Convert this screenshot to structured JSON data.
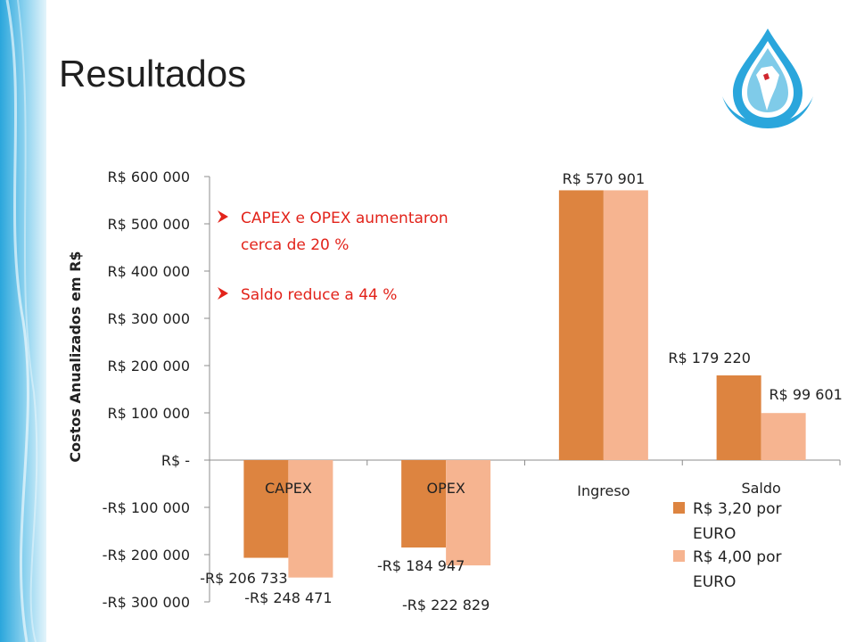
{
  "slide": {
    "title": "Resultados",
    "notes": [
      "CAPEX e OPEX aumentaron cerca de 20 %",
      "Saldo reduce a 44 %"
    ],
    "note_color": "#e2231a",
    "theme_colors": {
      "band_light": "#dff3fb",
      "band_dark": "#2aa6dc",
      "logo_blue": "#2aa6dc"
    }
  },
  "chart_data": {
    "type": "bar",
    "title": "",
    "ylabel": "Costos Anualizados em R$",
    "xlabel": "",
    "ylim": [
      -300000,
      600000
    ],
    "yticks": [
      600000,
      500000,
      400000,
      300000,
      200000,
      100000,
      0,
      -100000,
      -200000,
      -300000
    ],
    "ytick_labels": [
      "R$ 600 000",
      "R$ 500 000",
      "R$ 400 000",
      "R$ 300 000",
      "R$ 200 000",
      "R$ 100 000",
      "R$ -",
      "-R$ 100 000",
      "-R$ 200 000",
      "-R$ 300 000"
    ],
    "categories": [
      "CAPEX",
      "OPEX",
      "Ingreso",
      "Saldo"
    ],
    "series": [
      {
        "name": "R$ 3,20 por EURO",
        "color": "#dd8440",
        "values": [
          -206733,
          -184947,
          570901,
          179220
        ],
        "labels": [
          "-R$ 206 733",
          "-R$ 184 947",
          "R$ 570 901",
          "R$ 179 220"
        ]
      },
      {
        "name": "R$ 4,00 por EURO",
        "color": "#f6b490",
        "values": [
          -248471,
          -222829,
          570901,
          99601
        ],
        "labels": [
          "-R$ 248 471",
          "-R$ 222 829",
          "",
          "R$ 99 601"
        ]
      }
    ],
    "legend_position": "bottom-right",
    "grid": false
  }
}
